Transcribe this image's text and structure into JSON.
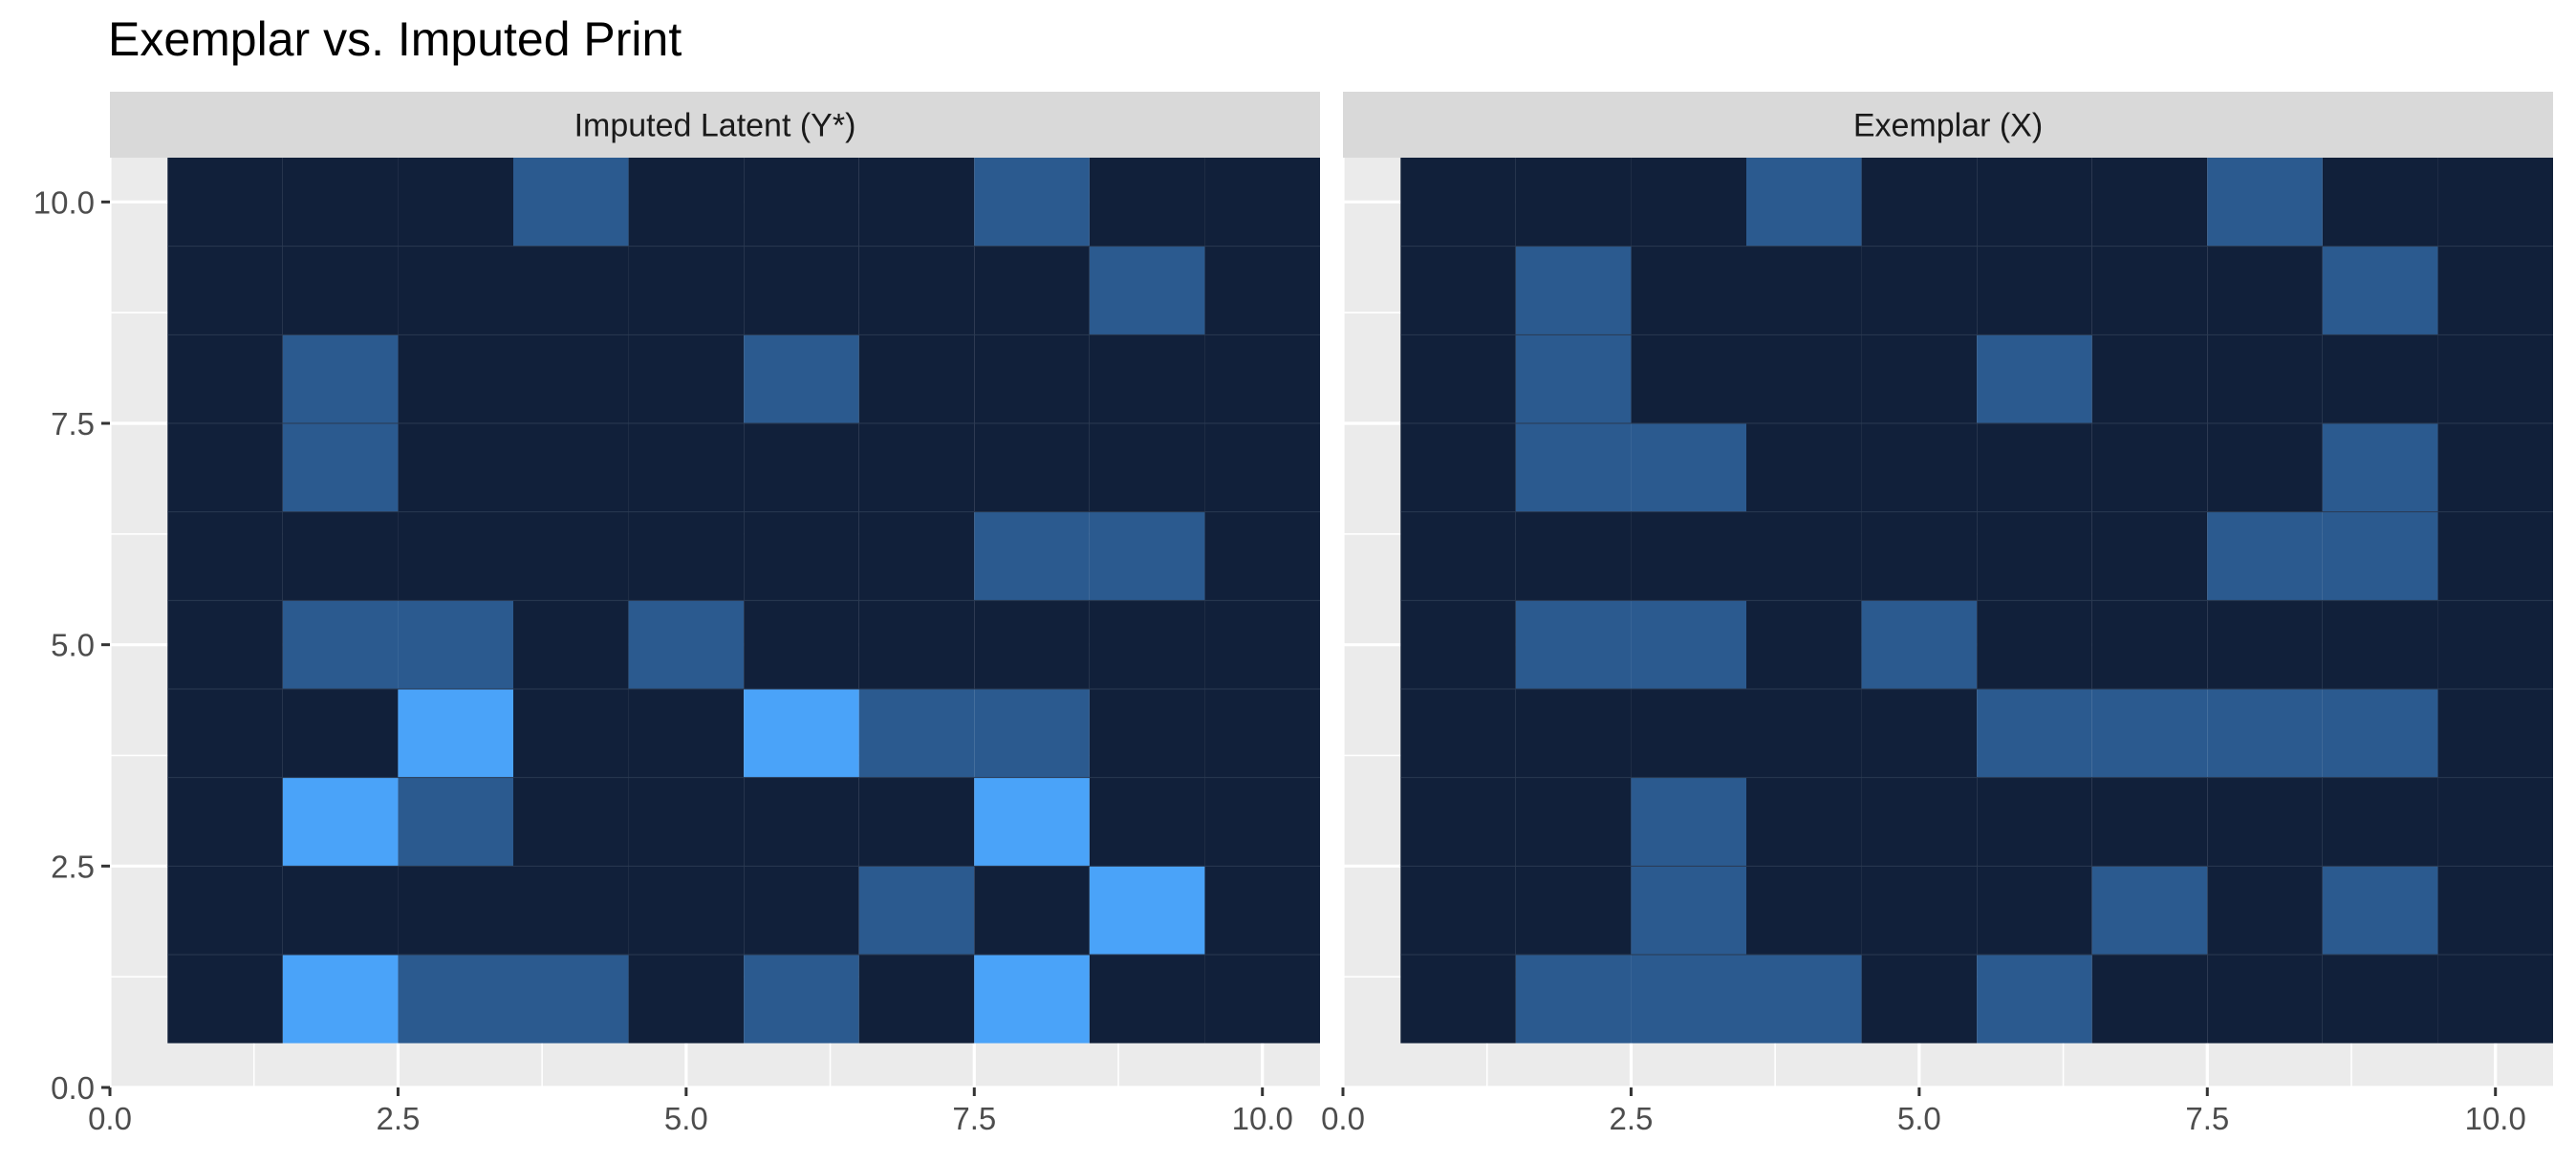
{
  "title": "Exemplar vs. Imputed Print",
  "colors": {
    "panel_background": "#ebebeb",
    "strip_background": "#d9d9d9",
    "grid_major": "#ffffff",
    "grid_minor": "#f4f4f4",
    "level_0": "#11203a",
    "level_1": "#2b5a8f",
    "level_2": "#4aa3f9"
  },
  "chart_data": [
    {
      "type": "heatmap",
      "panel": "Imputed Latent (Y*)",
      "xlim": [
        0,
        10.5
      ],
      "ylim": [
        0,
        10.5
      ],
      "x_ticks": [
        "0.0",
        "2.5",
        "5.0",
        "7.5",
        "10.0"
      ],
      "y_ticks": [
        "0.0",
        "2.5",
        "5.0",
        "7.5",
        "10.0"
      ],
      "legend": "none",
      "grid": true,
      "rows_y_descending": [
        10,
        9,
        8,
        7,
        6,
        5,
        4,
        3,
        2,
        1
      ],
      "cols_x": [
        1,
        2,
        3,
        4,
        5,
        6,
        7,
        8,
        9,
        10
      ],
      "z": [
        [
          0,
          0,
          0,
          1,
          0,
          0,
          0,
          1,
          0,
          0
        ],
        [
          0,
          0,
          0,
          0,
          0,
          0,
          0,
          0,
          1,
          0
        ],
        [
          0,
          1,
          0,
          0,
          0,
          1,
          0,
          0,
          0,
          0
        ],
        [
          0,
          1,
          0,
          0,
          0,
          0,
          0,
          0,
          0,
          0
        ],
        [
          0,
          0,
          0,
          0,
          0,
          0,
          0,
          1,
          1,
          0
        ],
        [
          0,
          1,
          1,
          0,
          1,
          0,
          0,
          0,
          0,
          0
        ],
        [
          0,
          0,
          2,
          0,
          0,
          2,
          1,
          1,
          0,
          0
        ],
        [
          0,
          2,
          1,
          0,
          0,
          0,
          0,
          2,
          0,
          0
        ],
        [
          0,
          0,
          0,
          0,
          0,
          0,
          1,
          0,
          2,
          0
        ],
        [
          0,
          2,
          1,
          1,
          0,
          1,
          0,
          2,
          0,
          0
        ]
      ]
    },
    {
      "type": "heatmap",
      "panel": "Exemplar (X)",
      "xlim": [
        0,
        10.5
      ],
      "ylim": [
        0,
        10.5
      ],
      "x_ticks": [
        "0.0",
        "2.5",
        "5.0",
        "7.5",
        "10.0"
      ],
      "y_ticks": [
        "0.0",
        "2.5",
        "5.0",
        "7.5",
        "10.0"
      ],
      "legend": "none",
      "grid": true,
      "rows_y_descending": [
        10,
        9,
        8,
        7,
        6,
        5,
        4,
        3,
        2,
        1
      ],
      "cols_x": [
        1,
        2,
        3,
        4,
        5,
        6,
        7,
        8,
        9,
        10
      ],
      "z": [
        [
          0,
          0,
          0,
          1,
          0,
          0,
          0,
          1,
          0,
          0
        ],
        [
          0,
          1,
          0,
          0,
          0,
          0,
          0,
          0,
          1,
          0
        ],
        [
          0,
          1,
          0,
          0,
          0,
          1,
          0,
          0,
          0,
          0
        ],
        [
          0,
          1,
          1,
          0,
          0,
          0,
          0,
          0,
          1,
          0
        ],
        [
          0,
          0,
          0,
          0,
          0,
          0,
          0,
          1,
          1,
          0
        ],
        [
          0,
          1,
          1,
          0,
          1,
          0,
          0,
          0,
          0,
          0
        ],
        [
          0,
          0,
          0,
          0,
          0,
          1,
          1,
          1,
          1,
          0
        ],
        [
          0,
          0,
          1,
          0,
          0,
          0,
          0,
          0,
          0,
          0
        ],
        [
          0,
          0,
          1,
          0,
          0,
          0,
          1,
          0,
          1,
          0
        ],
        [
          0,
          1,
          1,
          1,
          0,
          1,
          0,
          0,
          0,
          0
        ]
      ]
    }
  ]
}
